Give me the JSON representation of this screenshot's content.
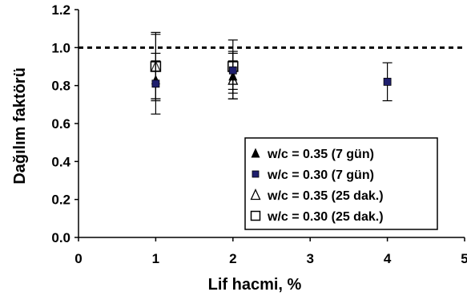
{
  "chart_data": {
    "type": "scatter",
    "title": "",
    "xlabel": "Lif hacmi, %",
    "ylabel": "Dağılım faktörü",
    "xlim": [
      0,
      5
    ],
    "ylim": [
      0.0,
      1.2
    ],
    "x_ticks": [
      "0",
      "1",
      "2",
      "3",
      "4",
      "5"
    ],
    "y_ticks": [
      "0.0",
      "0.2",
      "0.4",
      "0.6",
      "0.8",
      "1.0",
      "1.2"
    ],
    "grid": false,
    "reference_line": {
      "y": 1.0,
      "style": "dashed"
    },
    "legend_position": "bottom-right",
    "series": [
      {
        "name": "w/c = 0.35 (7 gün)",
        "marker": "triangle-filled",
        "color": "#000000",
        "points": [
          {
            "x": 1,
            "y": 0.83,
            "err": 0.1
          },
          {
            "x": 2,
            "y": 0.85,
            "err": 0.12
          }
        ]
      },
      {
        "name": "w/c = 0.30 (7 gün)",
        "marker": "square-filled",
        "color": "#1f1f6e",
        "points": [
          {
            "x": 1,
            "y": 0.81,
            "err": 0.16
          },
          {
            "x": 2,
            "y": 0.88,
            "err": 0.1
          },
          {
            "x": 4,
            "y": 0.82,
            "err": 0.1
          }
        ]
      },
      {
        "name": "w/c = 0.35 (25 dak.)",
        "marker": "triangle-open",
        "color": "#000000",
        "points": [
          {
            "x": 1,
            "y": 0.9,
            "err": 0.18
          },
          {
            "x": 2,
            "y": 0.83,
            "err": 0.1
          }
        ]
      },
      {
        "name": "w/c = 0.30 (25 dak.)",
        "marker": "square-open",
        "color": "#000000",
        "points": [
          {
            "x": 1,
            "y": 0.9,
            "err": 0.17
          },
          {
            "x": 2,
            "y": 0.9,
            "err": 0.14
          }
        ]
      }
    ]
  }
}
